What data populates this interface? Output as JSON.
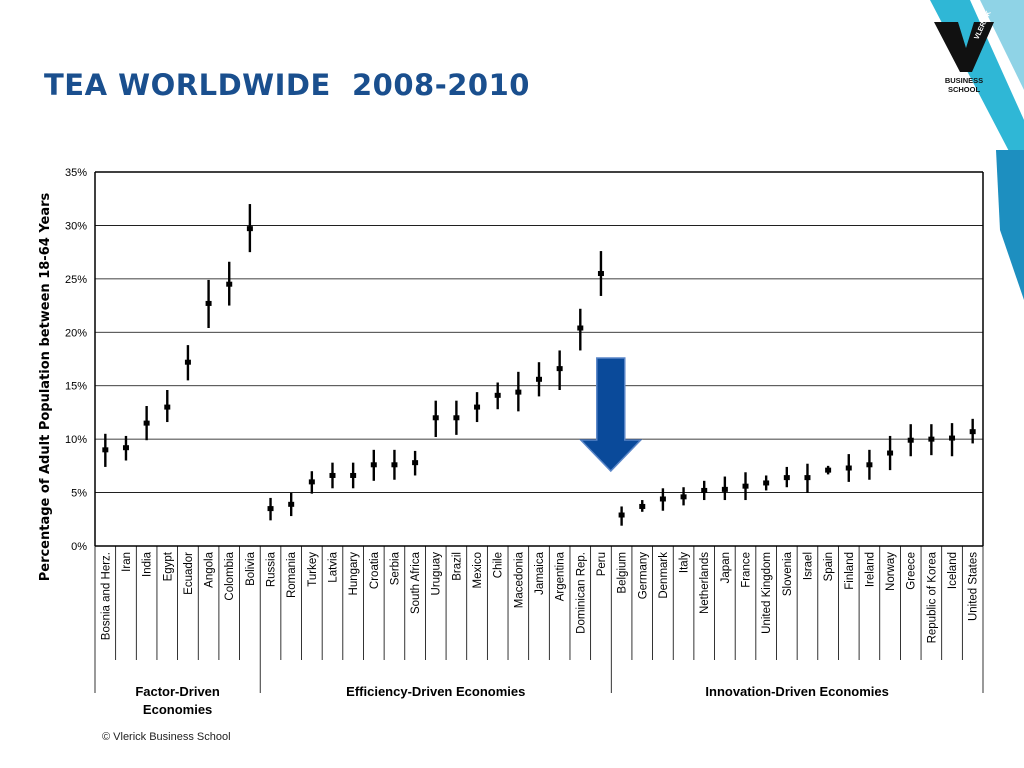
{
  "slide": {
    "title": "TEA WORLDWIDE  2008-2010",
    "footer": "© Vlerick Business School",
    "logo": {
      "line1": "BUSINESS",
      "line2": "SCHOOL",
      "mark": "VLERICK"
    }
  },
  "colors": {
    "title": "#1a4f8e",
    "arrow": "#0a4a9a",
    "bars": "#000000",
    "logo_teal": "#2fb7d6"
  },
  "chart_data": {
    "type": "scatter",
    "title": "",
    "xlabel": "",
    "ylabel": "Percentage of Adult Population between 18-64 Years",
    "ylim": [
      0,
      35
    ],
    "yticks": [
      "0%",
      "5%",
      "10%",
      "15%",
      "20%",
      "25%",
      "30%",
      "35%"
    ],
    "grid": true,
    "categories": [
      "Bosnia and Herz.",
      "Iran",
      "India",
      "Egypt",
      "Ecuador",
      "Angola",
      "Colombia",
      "Bolivia",
      "Russia",
      "Romania",
      "Turkey",
      "Latvia",
      "Hungary",
      "Croatia",
      "Serbia",
      "South Africa",
      "Uruguay",
      "Brazil",
      "Mexico",
      "Chile",
      "Macedonia",
      "Jamaica",
      "Argentina",
      "Dominican Rep.",
      "Peru",
      "Belgium",
      "Germany",
      "Denmark",
      "Italy",
      "Netherlands",
      "Japan",
      "France",
      "United Kingdom",
      "Slovenia",
      "Israel",
      "Spain",
      "Finland",
      "Ireland",
      "Norway",
      "Greece",
      "Republic of Korea",
      "Iceland",
      "United States"
    ],
    "values": [
      9.0,
      9.2,
      11.5,
      13.0,
      17.2,
      22.7,
      24.5,
      29.7,
      3.5,
      3.9,
      6.0,
      6.6,
      6.6,
      7.6,
      7.6,
      7.8,
      12.0,
      12.0,
      13.0,
      14.1,
      14.4,
      15.6,
      16.6,
      20.4,
      25.5,
      2.9,
      3.7,
      4.4,
      4.6,
      5.2,
      5.3,
      5.6,
      5.9,
      6.4,
      6.4,
      7.1,
      7.3,
      7.6,
      8.7,
      9.9,
      10.0,
      10.1,
      10.7
    ],
    "low": [
      7.4,
      8.0,
      9.9,
      11.6,
      15.5,
      20.4,
      22.5,
      27.5,
      2.4,
      2.8,
      4.9,
      5.4,
      5.4,
      6.1,
      6.2,
      6.6,
      10.2,
      10.4,
      11.6,
      12.8,
      12.6,
      14.0,
      14.6,
      18.3,
      23.4,
      1.9,
      3.2,
      3.3,
      3.8,
      4.3,
      4.3,
      4.3,
      5.2,
      5.5,
      5.0,
      6.7,
      6.0,
      6.2,
      7.1,
      8.4,
      8.5,
      8.4,
      9.6
    ],
    "high": [
      10.5,
      10.3,
      13.1,
      14.6,
      18.8,
      24.9,
      26.6,
      32.0,
      4.5,
      5.0,
      7.0,
      7.8,
      7.8,
      9.0,
      9.0,
      8.9,
      13.6,
      13.6,
      14.4,
      15.3,
      16.3,
      17.2,
      18.3,
      22.2,
      27.6,
      3.7,
      4.3,
      5.4,
      5.5,
      6.1,
      6.5,
      6.9,
      6.6,
      7.4,
      7.7,
      7.5,
      8.6,
      9.0,
      10.3,
      11.4,
      11.4,
      11.5,
      11.9
    ],
    "groups": [
      {
        "label_lines": [
          "Factor-Driven",
          "Economies"
        ],
        "count": 8
      },
      {
        "label_lines": [
          "Efficiency-Driven Economies"
        ],
        "count": 17
      },
      {
        "label_lines": [
          "Innovation-Driven Economies"
        ],
        "count": 18
      }
    ],
    "annotations": [
      {
        "type": "arrow",
        "direction": "down",
        "at_category": "Belgium"
      }
    ]
  }
}
